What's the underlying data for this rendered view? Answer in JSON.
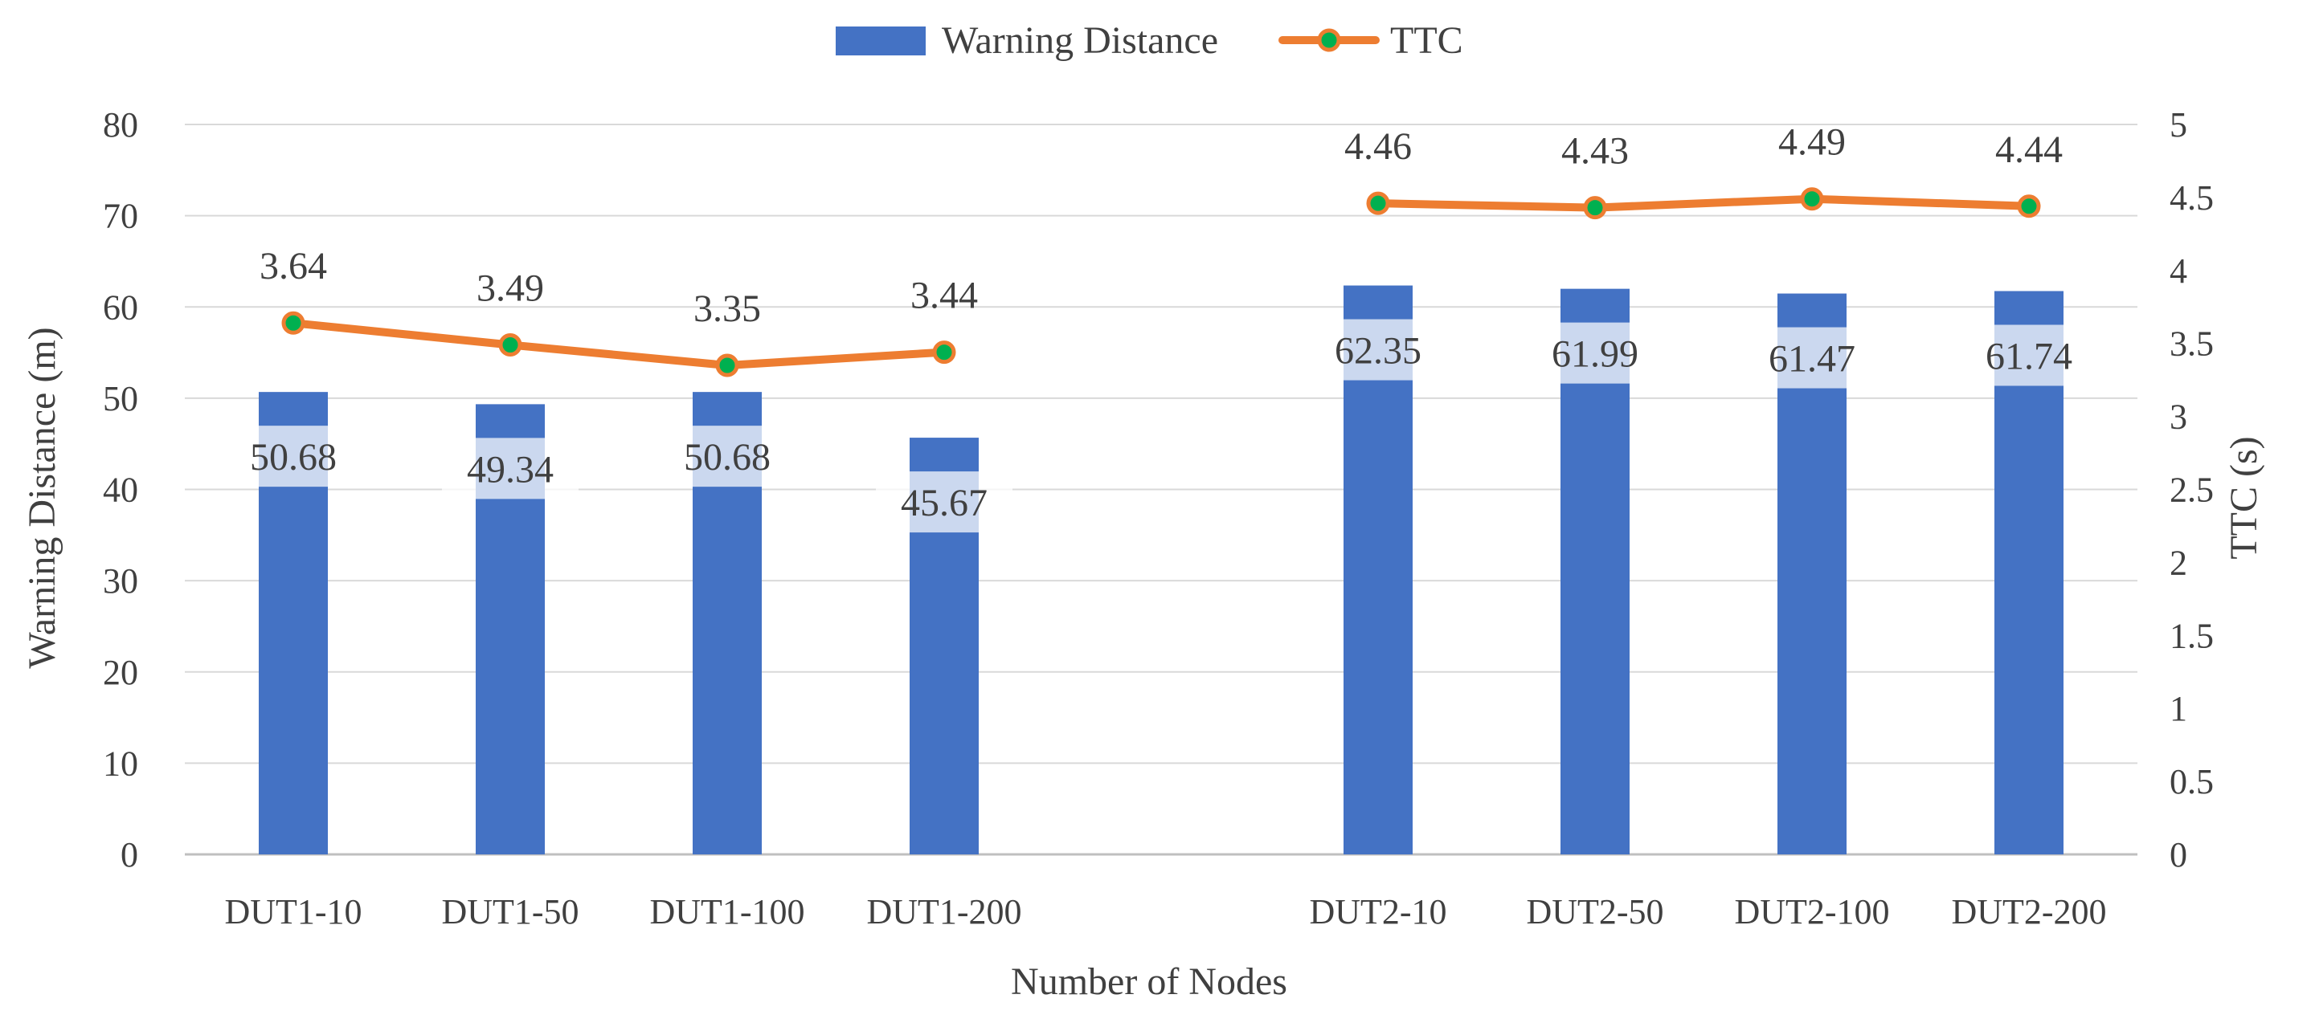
{
  "chart_data": {
    "type": "bar+line",
    "title": "",
    "xlabel": "Number of Nodes",
    "ylabel": "Warning Distance (m)",
    "y2label": "TTC (s)",
    "ylim": [
      0,
      80
    ],
    "yticks": [
      "0",
      "10",
      "20",
      "30",
      "40",
      "50",
      "60",
      "70",
      "80"
    ],
    "y2lim": [
      0,
      5
    ],
    "y2ticks": [
      "0",
      "0.5",
      "1",
      "1.5",
      "2",
      "2.5",
      "3",
      "3.5",
      "4",
      "4.5",
      "5"
    ],
    "grid": true,
    "legend_position": "top-center",
    "categories": [
      "DUT1-10",
      "DUT1-50",
      "DUT1-100",
      "DUT1-200",
      "",
      "DUT2-10",
      "DUT2-50",
      "DUT2-100",
      "DUT2-200"
    ],
    "series": [
      {
        "name": "Warning Distance",
        "kind": "bar",
        "axis": "left",
        "color": "#4472C4",
        "values": [
          50.68,
          49.34,
          50.68,
          45.67,
          null,
          62.35,
          61.99,
          61.47,
          61.74
        ],
        "labels": [
          "50.68",
          "49.34",
          "50.68",
          "45.67",
          "",
          "62.35",
          "61.99",
          "61.47",
          "61.74"
        ]
      },
      {
        "name": "TTC",
        "kind": "line",
        "axis": "right",
        "color": "#ED7D31",
        "marker_color": "#00B050",
        "values": [
          3.64,
          3.49,
          3.35,
          3.44,
          null,
          4.46,
          4.43,
          4.49,
          4.44
        ],
        "labels": [
          "3.64",
          "3.49",
          "3.35",
          "3.44",
          "",
          "4.46",
          "4.43",
          "4.49",
          "4.44"
        ]
      }
    ]
  }
}
